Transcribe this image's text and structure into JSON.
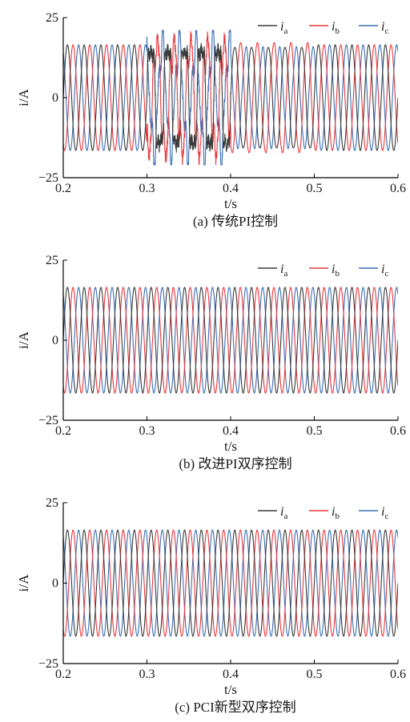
{
  "chart_data": [
    {
      "type": "line",
      "caption": "(a) 传统PI控制",
      "xlabel": "t/s",
      "ylabel": "i/A",
      "xlim": [
        0.2,
        0.6
      ],
      "ylim": [
        -25,
        25
      ],
      "xticks": [
        "0.2",
        "0.3",
        "0.4",
        "0.5",
        "0.6"
      ],
      "yticks": [
        "25",
        "0",
        "−25"
      ],
      "legend_position": "top-right",
      "waveform": {
        "frequency_hz": 50,
        "amplitude_A": 16.5,
        "phase_order_deg": [
          0,
          -120,
          120
        ],
        "disturbance": {
          "interval_s": [
            0.3,
            0.4
          ],
          "description": "distorted, unbalanced currents with peaks up to about ±21 A"
        },
        "recovery": {
          "interval_s": [
            0.4,
            0.5
          ],
          "description": "slight residual unbalance before returning to steady state"
        }
      },
      "series": [
        {
          "name": "i",
          "subscript": "a",
          "color": "#3a3a3a"
        },
        {
          "name": "i",
          "subscript": "b",
          "color": "#e8383d"
        },
        {
          "name": "i",
          "subscript": "c",
          "color": "#3d6fb6"
        }
      ]
    },
    {
      "type": "line",
      "caption": "(b) 改进PI双序控制",
      "xlabel": "t/s",
      "ylabel": "i/A",
      "xlim": [
        0.2,
        0.6
      ],
      "ylim": [
        -25,
        25
      ],
      "xticks": [
        "0.2",
        "0.3",
        "0.4",
        "0.5",
        "0.6"
      ],
      "yticks": [
        "25",
        "0",
        "−25"
      ],
      "legend_position": "top-right",
      "waveform": {
        "frequency_hz": 50,
        "amplitude_A": 16.5,
        "phase_order_deg": [
          0,
          -120,
          120
        ]
      },
      "series": [
        {
          "name": "i",
          "subscript": "a",
          "color": "#3a3a3a"
        },
        {
          "name": "i",
          "subscript": "b",
          "color": "#e8383d"
        },
        {
          "name": "i",
          "subscript": "c",
          "color": "#3d6fb6"
        }
      ]
    },
    {
      "type": "line",
      "caption": "(c) PCI新型双序控制",
      "xlabel": "t/s",
      "ylabel": "i/A",
      "xlim": [
        0.2,
        0.6
      ],
      "ylim": [
        -25,
        25
      ],
      "xticks": [
        "0.2",
        "0.3",
        "0.4",
        "0.5",
        "0.6"
      ],
      "yticks": [
        "25",
        "0",
        "−25"
      ],
      "legend_position": "top-right",
      "waveform": {
        "frequency_hz": 50,
        "amplitude_A": 16.5,
        "phase_order_deg": [
          0,
          -120,
          120
        ]
      },
      "series": [
        {
          "name": "i",
          "subscript": "a",
          "color": "#3a3a3a"
        },
        {
          "name": "i",
          "subscript": "b",
          "color": "#e8383d"
        },
        {
          "name": "i",
          "subscript": "c",
          "color": "#3d6fb6"
        }
      ]
    }
  ]
}
